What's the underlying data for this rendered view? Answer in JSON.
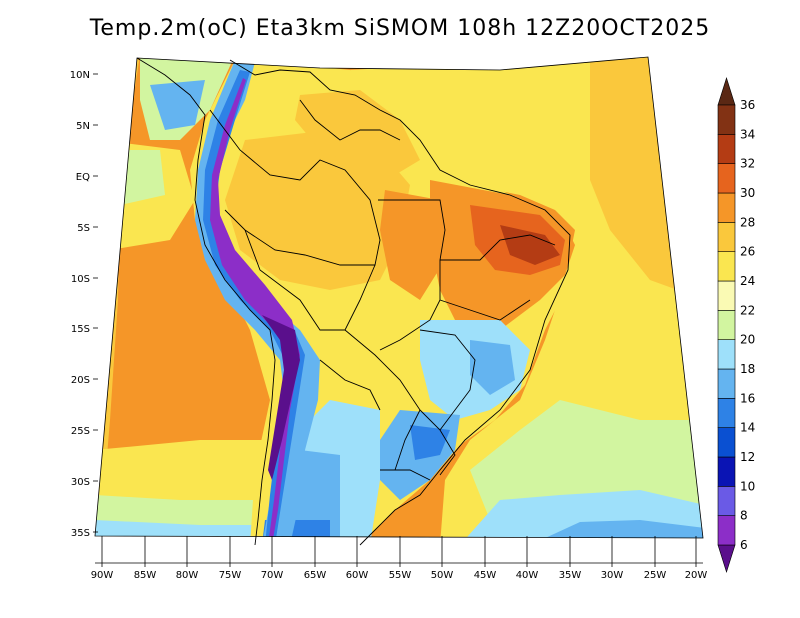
{
  "title": "Temp.2m(oC)  Eta3km  SiSMOM  108h  12Z20OCT2025",
  "variable": "Temp.2m",
  "units": "oC",
  "model": "Eta3km",
  "source": "SiSMOM",
  "forecast_hour": "108h",
  "init_time": "12Z20OCT2025",
  "lat_labels": [
    "10N",
    "5N",
    "EQ",
    "5S",
    "10S",
    "15S",
    "20S",
    "25S",
    "30S",
    "35S"
  ],
  "lon_labels": [
    "90W",
    "85W",
    "80W",
    "75W",
    "70W",
    "65W",
    "60W",
    "55W",
    "50W",
    "45W",
    "40W",
    "35W",
    "30W",
    "25W",
    "20W"
  ],
  "colorbar": {
    "labels": [
      "6",
      "8",
      "10",
      "12",
      "14",
      "16",
      "18",
      "20",
      "22",
      "24",
      "26",
      "28",
      "30",
      "32",
      "34",
      "36"
    ],
    "colors": [
      "#5a0f8c",
      "#8c2ec8",
      "#6a5ae6",
      "#0a14b4",
      "#0a50d2",
      "#2e82e6",
      "#64b4f0",
      "#9ee0fa",
      "#d2f5a0",
      "#fafab4",
      "#fae650",
      "#fac83c",
      "#f59628",
      "#e6641e",
      "#b43c14",
      "#823214",
      "#5a2814"
    ]
  }
}
